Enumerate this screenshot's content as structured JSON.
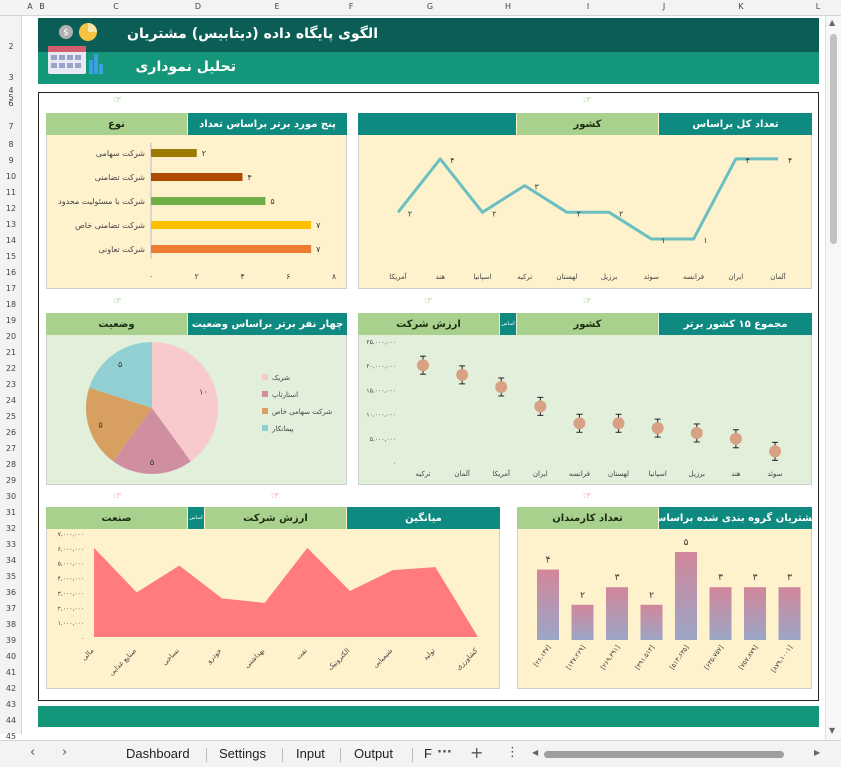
{
  "columns": [
    "A",
    "B",
    "C",
    "D",
    "E",
    "F",
    "G",
    "H",
    "I",
    "J",
    "K",
    "L"
  ],
  "rows": [
    "2",
    "3",
    "4",
    "5",
    "6",
    "7",
    "8",
    "9",
    "10",
    "11",
    "12",
    "13",
    "14",
    "15",
    "16",
    "17",
    "18",
    "19",
    "20",
    "21",
    "22",
    "23",
    "24",
    "25",
    "26",
    "27",
    "28",
    "29",
    "30",
    "31",
    "32",
    "33",
    "34",
    "35",
    "36",
    "37",
    "38",
    "39",
    "40",
    "41",
    "42",
    "43",
    "44",
    "45"
  ],
  "header": {
    "title": "الگوی پایگاه داده (دیتابیس) مشتریان",
    "subtitle": "تحلیل نموداری"
  },
  "charts": {
    "type_chart": {
      "headers": [
        "پنج مورد برتر براساس تعداد",
        "نوع"
      ],
      "chart_data": {
        "type": "bar",
        "orientation": "horizontal",
        "categories": [
          "شرکت سهامی",
          "شرکت تضامنی",
          "شرکت با مسئولیت محدود",
          "شرکت تضامنی خاص",
          "شرکت تعاونی"
        ],
        "values": [
          2,
          4,
          5,
          7,
          7
        ],
        "value_labels": [
          "۲",
          "۴",
          "۵",
          "۷",
          "۷"
        ],
        "colors": [
          "#9c7b00",
          "#b04a00",
          "#70ad47",
          "#ffc000",
          "#ed7d31"
        ],
        "xlim": [
          0,
          8
        ],
        "xticks": [
          "۰",
          "۲",
          "۴",
          "۶",
          "۸"
        ]
      }
    },
    "country_line": {
      "headers": [
        "تعداد کل براساس",
        "کشور",
        ""
      ],
      "chart_data": {
        "type": "line",
        "categories": [
          "آلمان",
          "ایران",
          "فرانسه",
          "سوئد",
          "برزیل",
          "لهستان",
          "ترکیه",
          "اسپانیا",
          "هند",
          "آمریکا"
        ],
        "values": [
          4,
          4,
          1,
          1,
          2,
          2,
          3,
          2,
          4,
          2
        ],
        "value_labels": [
          "۴",
          "۴",
          "۱",
          "۱",
          "۲",
          "۲",
          "۳",
          "۲",
          "۴",
          "۲"
        ],
        "color": "#6cbfc1"
      }
    },
    "status_pie": {
      "headers": [
        "چهار نفر برتر براساس وضعیت",
        "وضعیت"
      ],
      "chart_data": {
        "type": "pie",
        "labels": [
          "شریک",
          "استارتاپ",
          "شرکت سهامی خاص",
          "پیمانکار"
        ],
        "values": [
          10,
          5,
          5,
          5
        ],
        "value_labels": [
          "۱۰",
          "۵",
          "۵",
          "۵"
        ],
        "colors": [
          "#f8c9cd",
          "#d08fa0",
          "#d7a061",
          "#92cfd2"
        ],
        "legend": "right"
      }
    },
    "country_value": {
      "headers": [
        "مجموع ۱۵ کشور برتر",
        "کشور",
        "اساس",
        "ارزش شرکت"
      ],
      "chart_data": {
        "type": "scatter",
        "categories": [
          "ترکیه",
          "آلمان",
          "آمریکا",
          "ایران",
          "فرانسه",
          "لهستان",
          "اسپانیا",
          "برزیل",
          "هند",
          "سوئد"
        ],
        "values": [
          20000000,
          18000000,
          15500000,
          11500000,
          8000000,
          8000000,
          7000000,
          6000000,
          4800000,
          2200000
        ],
        "ylim": [
          0,
          25000000
        ],
        "yticks": [
          "۰",
          "۵,۰۰۰,۰۰۰",
          "۱۰,۰۰۰,۰۰۰",
          "۱۵,۰۰۰,۰۰۰",
          "۲۰,۰۰۰,۰۰۰",
          "۲۵,۰۰۰,۰۰۰"
        ],
        "color": "#d8a184"
      }
    },
    "industry_area": {
      "headers": [
        "میانگین",
        "ارزش شرکت",
        "اساس",
        "صنعت"
      ],
      "chart_data": {
        "type": "area",
        "categories": [
          "مالی",
          "صنایع غذایی",
          "نساجی",
          "خودرو",
          "بهداشتی",
          "نفت",
          "الکترونیک",
          "شیمیایی",
          "تولید",
          "کشاورزی"
        ],
        "values": [
          6000000,
          3000000,
          4800000,
          2600000,
          2300000,
          6000000,
          3100000,
          4500000,
          4700000,
          0
        ],
        "ylim": [
          0,
          7000000
        ],
        "yticks": [
          "۰",
          "۱,۰۰۰,۰۰۰",
          "۲,۰۰۰,۰۰۰",
          "۳,۰۰۰,۰۰۰",
          "۴,۰۰۰,۰۰۰",
          "۵,۰۰۰,۰۰۰",
          "۶,۰۰۰,۰۰۰",
          "۷,۰۰۰,۰۰۰"
        ],
        "color": "#ff7b7e"
      }
    },
    "employees_bar": {
      "headers": [
        "مشتریان گروه بندی شده براساس",
        "تعداد کارمندان"
      ],
      "chart_data": {
        "type": "bar",
        "categories": [
          "[۲۶،۱۴۷]",
          "[۱۴۷،۲۶۹]",
          "[۲۶۹،۳۹۱]",
          "[۳۹۱،۵۱۳]",
          "[۵۱۳،۶۳۵]",
          "[۶۳۵،۷۵۷]",
          "[۷۵۷،۸۷۹]",
          "[۸۷۹،۱۰۰۱]"
        ],
        "values": [
          4,
          2,
          3,
          2,
          5,
          3,
          3,
          3
        ],
        "value_labels": [
          "۴",
          "۲",
          "۳",
          "۲",
          "۵",
          "۳",
          "۳",
          "۳"
        ],
        "colors": [
          "#d2869a",
          "#9ba6c7"
        ]
      }
    }
  },
  "tabs": [
    "Dashboard",
    "Settings",
    "Input",
    "Output",
    "F"
  ]
}
